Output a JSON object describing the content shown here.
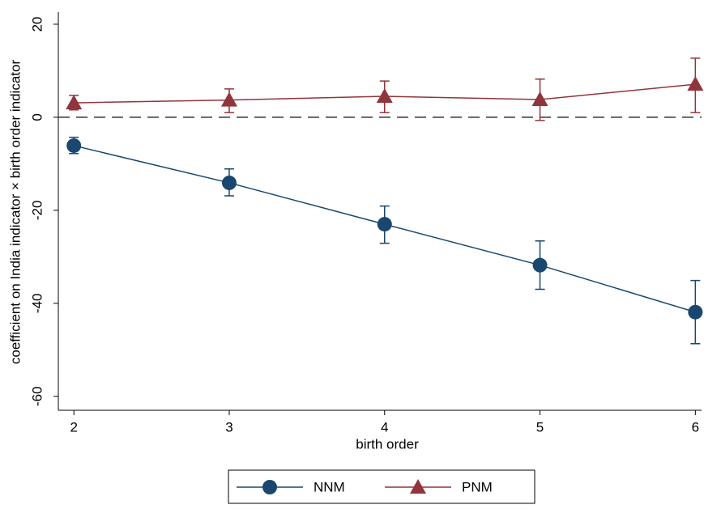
{
  "chart_data": {
    "type": "line",
    "x_label": "birth order",
    "y_label": "coefficient on India indicator × birth order indicator",
    "x": [
      2,
      3,
      4,
      5,
      6
    ],
    "series": [
      {
        "name": "NNM",
        "color": "#1a476f",
        "marker": "circle",
        "values": [
          -6.1,
          -14.1,
          -23.0,
          -31.8,
          -41.9
        ],
        "lower": [
          -7.8,
          -16.9,
          -27.1,
          -37.0,
          -48.7
        ],
        "upper": [
          -4.3,
          -11.1,
          -19.1,
          -26.6,
          -35.1
        ]
      },
      {
        "name": "PNM",
        "color": "#90353b",
        "marker": "triangle",
        "values": [
          3.1,
          3.7,
          4.5,
          3.8,
          7.1
        ],
        "lower": [
          1.6,
          1.0,
          1.0,
          -0.7,
          1.0
        ],
        "upper": [
          4.7,
          6.1,
          7.8,
          8.2,
          12.7
        ]
      }
    ],
    "reference_line": 0,
    "xlim": [
      1.9,
      6.04
    ],
    "xticks": [
      2,
      3,
      4,
      5,
      6
    ],
    "ylim": [
      -63,
      22.6
    ],
    "yticks": [
      -60,
      -40,
      -20,
      0,
      20
    ],
    "legend": "bottom"
  }
}
